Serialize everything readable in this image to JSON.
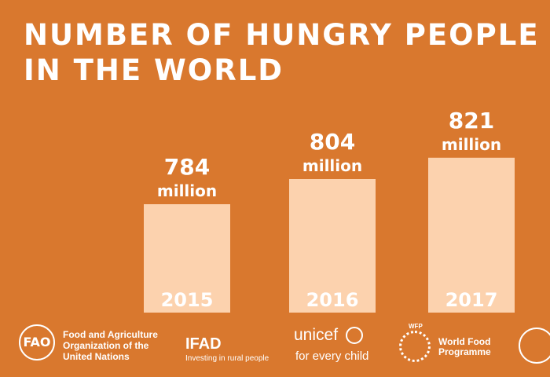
{
  "chart_data": {
    "type": "bar",
    "title": "NUMBER OF HUNGRY PEOPLE IN THE WORLD",
    "title_lines": [
      "NUMBER OF HUNGRY PEOPLE",
      "IN THE WORLD"
    ],
    "categories": [
      "2015",
      "2016",
      "2017"
    ],
    "values": [
      784,
      804,
      821
    ],
    "value_labels": [
      "784",
      "804",
      "821"
    ],
    "unit": "million",
    "xlabel": "",
    "ylabel": "",
    "grid": false
  },
  "colors": {
    "background": "#D9782E",
    "bar": "#FCD2AE",
    "text": "#FFFFFF"
  },
  "logos": {
    "fao": {
      "mark": "FAO",
      "text_lines": [
        "Food and Agriculture",
        "Organization of the",
        "United Nations"
      ]
    },
    "ifad": {
      "name": "IFAD",
      "tagline": "Investing in rural people"
    },
    "unicef": {
      "name": "unicef",
      "tagline": "for every child"
    },
    "wfp": {
      "abbr": "WFP",
      "text_lines": [
        "World Food",
        "Programme"
      ]
    },
    "who": {
      "icon": "who-emblem-icon"
    }
  }
}
